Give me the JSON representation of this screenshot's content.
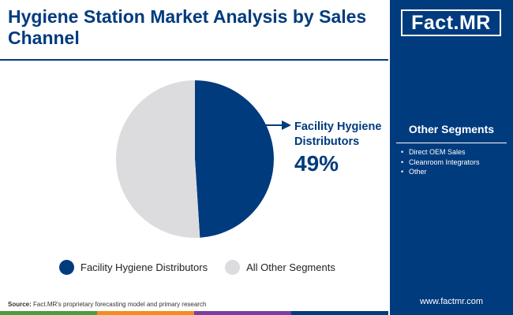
{
  "title": "Hygiene Station Market Analysis by Sales Channel",
  "colors": {
    "primary": "#003b7d",
    "other": "#dcdcdf",
    "bottom_bar": [
      "#4e9a3e",
      "#f28c1e",
      "#7a3ea0",
      "#003b7d"
    ]
  },
  "chart_data": {
    "type": "pie",
    "title": "Hygiene Station Market Analysis by Sales Channel",
    "slices": [
      {
        "name": "Facility Hygiene Distributors",
        "value": 49,
        "color": "#003b7d"
      },
      {
        "name": "All Other Segments",
        "value": 51,
        "color": "#dcdcdf"
      }
    ],
    "callout": {
      "label": "Facility Hygiene Distributors",
      "value": "49%"
    },
    "legend": [
      "Facility Hygiene Distributors",
      "All Other Segments"
    ],
    "legend_position": "bottom"
  },
  "source": {
    "label": "Source:",
    "text": "Fact.MR's proprietary forecasting model and primary research"
  },
  "side_panel": {
    "logo": "Fact.MR",
    "heading": "Other Segments",
    "items": [
      "Direct OEM Sales",
      "Cleanroom Integrators",
      "Other"
    ],
    "website": "www.factmr.com"
  }
}
